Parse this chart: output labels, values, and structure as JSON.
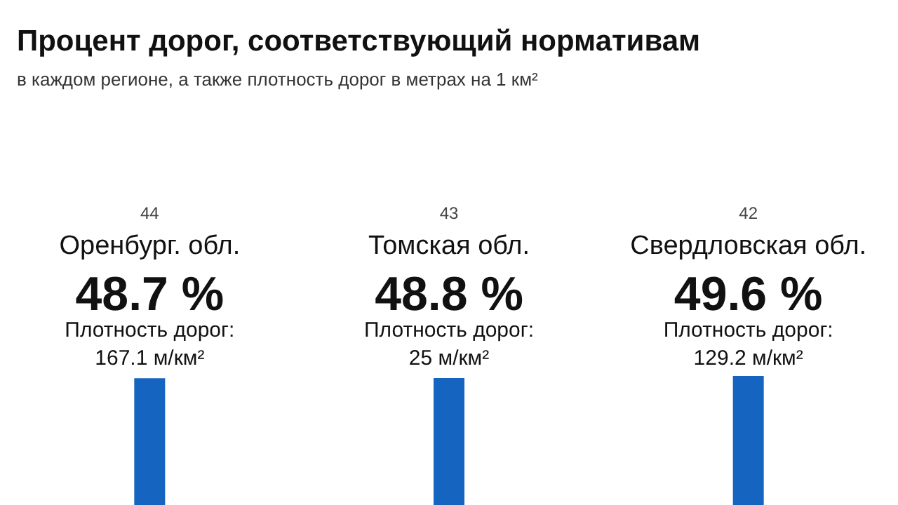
{
  "chart_data": {
    "type": "bar",
    "title": "Процент дорог, соответствующий нормативам",
    "subtitle": "в каждом регионе, а также плотность дорог в метрах на 1 км²",
    "categories": [
      "Оренбург. обл.",
      "Томская обл.",
      "Свердловская обл."
    ],
    "values": [
      48.7,
      48.8,
      49.6
    ],
    "value_labels": [
      "48.7 %",
      "48.8 %",
      "49.6 %"
    ],
    "color": "#1565c0",
    "annotations": [
      "44",
      "Плотность дорог:",
      "167.1 м/км²",
      "43",
      "Плотность дорог:",
      "25 м/км²",
      "42",
      "Плотность дорог:",
      "129.2 м/км²"
    ]
  }
}
